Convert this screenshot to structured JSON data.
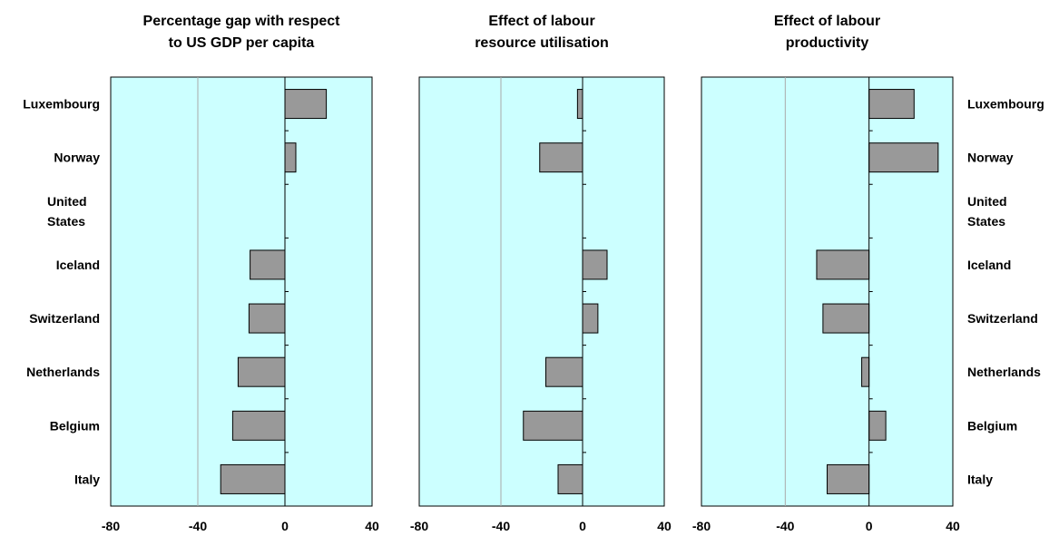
{
  "chart_data": {
    "type": "bar",
    "orientation": "horizontal",
    "categories": [
      "Luxembourg",
      "Norway",
      "United States",
      "Iceland",
      "Switzerland",
      "Netherlands",
      "Belgium",
      "Italy"
    ],
    "xlim": [
      -80,
      40
    ],
    "xticks": [
      -80,
      -40,
      0,
      40
    ],
    "grid": true,
    "background_color": "#ccffff",
    "bar_color": "#999999",
    "panels": [
      {
        "title": "Percentage gap with respect to US GDP per capita",
        "values": [
          19,
          5,
          0,
          -16,
          -16.5,
          -21.5,
          -24,
          -29.5
        ]
      },
      {
        "title": "Effect of labour resource utilisation",
        "values": [
          -2.5,
          -21,
          0,
          12,
          7.5,
          -18,
          -29,
          -12
        ]
      },
      {
        "title": "Effect of labour productivity",
        "values": [
          21.5,
          33,
          0,
          -25,
          -22,
          -3.5,
          8,
          -20
        ]
      }
    ]
  }
}
